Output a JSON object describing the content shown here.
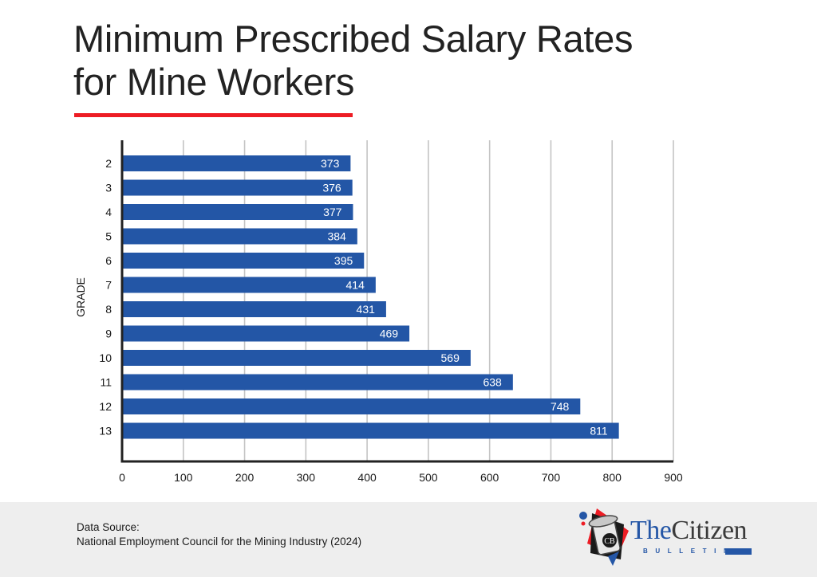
{
  "header": {
    "title_line1": "Minimum Prescribed Salary Rates",
    "title_line2": "for Mine Workers",
    "accent_color": "#ed1c24"
  },
  "chart_data": {
    "type": "bar",
    "orientation": "horizontal",
    "title": "Minimum Prescribed Salary Rates for Mine Workers",
    "xlabel": "",
    "ylabel": "GRADE",
    "categories": [
      "2",
      "3",
      "4",
      "5",
      "6",
      "7",
      "8",
      "9",
      "10",
      "11",
      "12",
      "13"
    ],
    "values": [
      373,
      376,
      377,
      384,
      395,
      414,
      431,
      469,
      569,
      638,
      748,
      811
    ],
    "data_labels": [
      "373",
      "376",
      "377",
      "384",
      "395",
      "414",
      "431",
      "469",
      "569",
      "638",
      "748",
      "811"
    ],
    "xlim": [
      0,
      900
    ],
    "xticks": [
      0,
      100,
      200,
      300,
      400,
      500,
      600,
      700,
      800,
      900
    ],
    "xtick_labels": [
      "0",
      "100",
      "200",
      "300",
      "400",
      "500",
      "600",
      "700",
      "800",
      "900"
    ],
    "grid": "vertical",
    "legend": "none",
    "bar_color": "#2356a6",
    "label_color": "#ffffff"
  },
  "footer": {
    "source_label": "Data Source:",
    "source_text": "National Employment Council for the Mining Industry (2024)"
  },
  "logo": {
    "word_the": "The",
    "word_citizen": "Citizen",
    "subtitle": "BULLETIN",
    "badge_text": "CB",
    "icon": "newspaper-roll-icon"
  }
}
